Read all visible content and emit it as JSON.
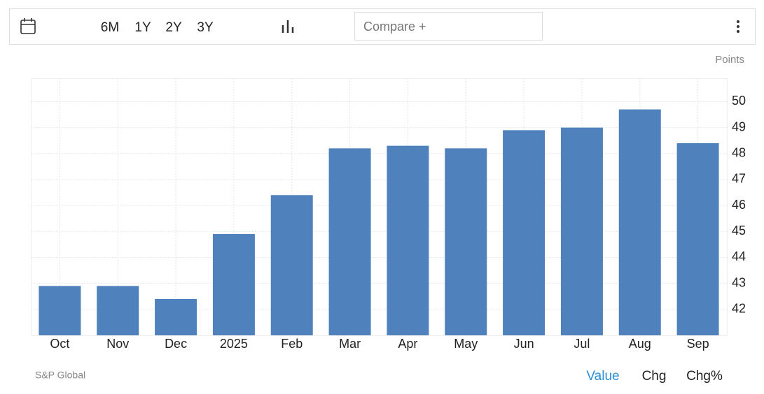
{
  "toolbar": {
    "ranges": [
      "6M",
      "1Y",
      "2Y",
      "3Y"
    ],
    "compare": "Compare +"
  },
  "chart_data": {
    "type": "bar",
    "y_label": "Points",
    "categories": [
      "Oct",
      "Nov",
      "Dec",
      "2025",
      "Feb",
      "Mar",
      "Apr",
      "May",
      "Jun",
      "Jul",
      "Aug",
      "Sep"
    ],
    "values": [
      42.9,
      42.9,
      42.4,
      44.9,
      46.4,
      48.2,
      48.3,
      48.2,
      48.9,
      49.0,
      49.7,
      48.4
    ],
    "color": "#4f81bd",
    "ylim": [
      41,
      50.9
    ],
    "yticks": [
      42,
      43,
      44,
      45,
      46,
      47,
      48,
      49,
      50
    ],
    "grid": true
  },
  "footer": {
    "source": "S&P Global",
    "tabs": [
      "Value",
      "Chg",
      "Chg%"
    ]
  }
}
